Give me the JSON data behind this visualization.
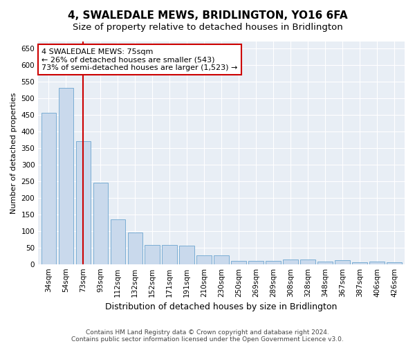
{
  "title": "4, SWALEDALE MEWS, BRIDLINGTON, YO16 6FA",
  "subtitle": "Size of property relative to detached houses in Bridlington",
  "xlabel": "Distribution of detached houses by size in Bridlington",
  "ylabel": "Number of detached properties",
  "categories": [
    "34sqm",
    "54sqm",
    "73sqm",
    "93sqm",
    "112sqm",
    "132sqm",
    "152sqm",
    "171sqm",
    "191sqm",
    "210sqm",
    "230sqm",
    "250sqm",
    "269sqm",
    "289sqm",
    "308sqm",
    "328sqm",
    "348sqm",
    "367sqm",
    "387sqm",
    "406sqm",
    "426sqm"
  ],
  "values": [
    455,
    530,
    370,
    245,
    135,
    95,
    58,
    57,
    55,
    27,
    27,
    10,
    10,
    10,
    13,
    13,
    7,
    12,
    5,
    7,
    5
  ],
  "bar_color": "#c9d9ec",
  "bar_edge_color": "#7aadd4",
  "vline_x": 2,
  "vline_color": "#cc0000",
  "annotation_line1": "4 SWALEDALE MEWS: 75sqm",
  "annotation_line2": "← 26% of detached houses are smaller (543)",
  "annotation_line3": "73% of semi-detached houses are larger (1,523) →",
  "annotation_box_color": "#ffffff",
  "annotation_box_edge_color": "#cc0000",
  "ylim": [
    0,
    670
  ],
  "yticks": [
    0,
    50,
    100,
    150,
    200,
    250,
    300,
    350,
    400,
    450,
    500,
    550,
    600,
    650
  ],
  "background_color": "#e8eef5",
  "footer_line1": "Contains HM Land Registry data © Crown copyright and database right 2024.",
  "footer_line2": "Contains public sector information licensed under the Open Government Licence v3.0.",
  "title_fontsize": 11,
  "subtitle_fontsize": 9.5,
  "ylabel_fontsize": 8,
  "xlabel_fontsize": 9,
  "tick_fontsize": 7.5
}
